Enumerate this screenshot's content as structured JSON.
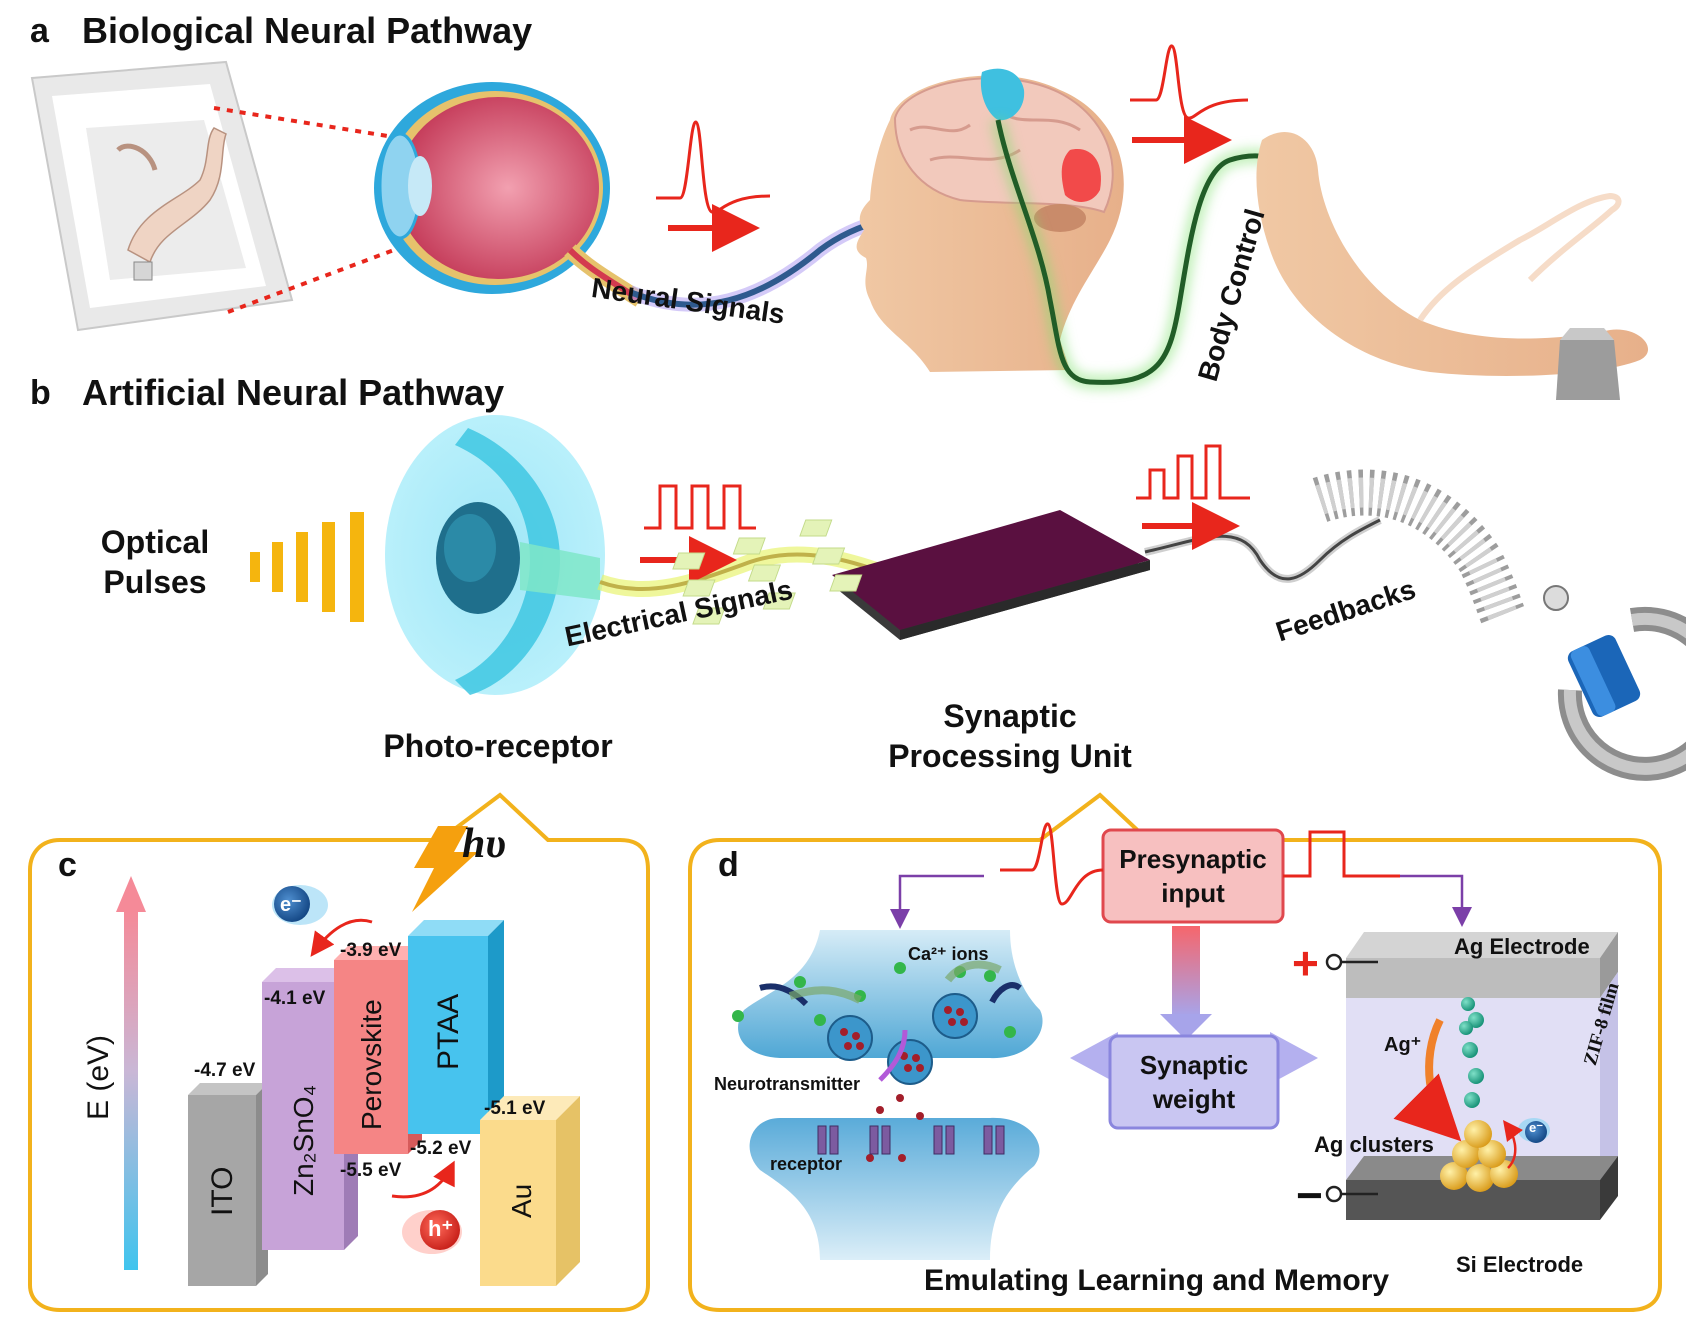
{
  "panel_a": {
    "letter": "a",
    "title": "Biological Neural Pathway",
    "neural_signals": "Neural Signals",
    "body_control": "Body Control"
  },
  "panel_b": {
    "letter": "b",
    "title": "Artificial Neural Pathway",
    "optical_pulses_line1": "Optical",
    "optical_pulses_line2": "Pulses",
    "photo_receptor": "Photo-receptor",
    "electrical_signals": "Electrical Signals",
    "synaptic_line1": "Synaptic",
    "synaptic_line2": "Processing Unit",
    "feedbacks": "Feedbacks"
  },
  "panel_c": {
    "letter": "c",
    "h_nu": "hυ",
    "axis_label": "E (eV)",
    "electron": "e⁻",
    "hole": "h⁺",
    "layers": {
      "ito": "ITO",
      "zn2sno4": "Zn₂SnO₄",
      "perovskite": "Perovskite",
      "ptaa": "PTAA",
      "au": "Au"
    },
    "levels": {
      "ito": "-4.7 eV",
      "zn_cb": "-4.1 eV",
      "pvk_cb": "-3.9 eV",
      "pvk_vb": "-5.5 eV",
      "ptaa_homo": "-5.2 eV",
      "au": "-5.1 eV"
    }
  },
  "panel_d": {
    "letter": "d",
    "presynaptic_line1": "Presynaptic",
    "presynaptic_line2": "input",
    "synaptic_weight_line1": "Synaptic",
    "synaptic_weight_line2": "weight",
    "ca_ions": "Ca²⁺ ions",
    "neurotransmitter": "Neurotransmitter",
    "receptor": "receptor",
    "ag_electrode": "Ag Electrode",
    "zif_film": "ZIF-8 film",
    "ag_plus": "Ag⁺",
    "ag_clusters": "Ag clusters",
    "electron": "e⁻",
    "si_electrode": "Si Electrode",
    "plus": "+",
    "minus": "−",
    "footer": "Emulating Learning and Memory"
  },
  "colors": {
    "signal_red": "#e8261c",
    "panel_outline": "#f2b21c",
    "optical_yellow": "#f5b50e",
    "chip_purple": "#5a1040",
    "ptaa_blue": "#47c3ee",
    "perovskite_red": "#f58585",
    "zn_purple": "#c7a3d8",
    "ito_gray": "#a6a6a6",
    "au_yellow": "#fbdb8c"
  }
}
